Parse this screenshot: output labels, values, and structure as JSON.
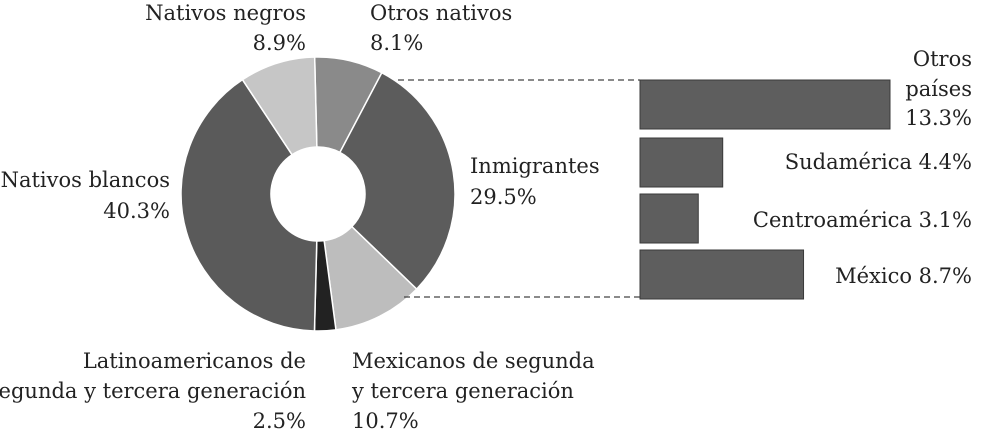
{
  "chart_data": [
    {
      "type": "pie",
      "slices": [
        {
          "label": "Otros nativos",
          "value": 8.1,
          "value_label": "8.1%",
          "color": "#8a8a8a"
        },
        {
          "label": "Inmigrantes",
          "value": 29.5,
          "value_label": "29.5%",
          "color": "#5c5c5c"
        },
        {
          "label": "Mexicanos de segunda y tercera generación",
          "value": 10.7,
          "value_label": "10.7%",
          "color": "#bdbdbd"
        },
        {
          "label": "Latinoamericanos de segunda y tercera generación",
          "value": 2.5,
          "value_label": "2.5%",
          "color": "#222222"
        },
        {
          "label": "Nativos blancos",
          "value": 40.3,
          "value_label": "40.3%",
          "color": "#5a5a5a"
        },
        {
          "label": "Nativos negros",
          "value": 8.9,
          "value_label": "8.9%",
          "color": "#c6c6c6"
        }
      ]
    },
    {
      "type": "bar",
      "orientation": "horizontal",
      "categories": [
        "Otros países",
        "Sudamérica",
        "Centroamérica",
        "México"
      ],
      "values": [
        13.3,
        4.4,
        3.1,
        8.7
      ],
      "value_labels": [
        "13.3%",
        "4.4%",
        "3.1%",
        "8.7%"
      ],
      "color": "#5e5e5e"
    }
  ],
  "labels": {
    "otros_nativos": {
      "name": "Otros nativos",
      "pct": "8.1%"
    },
    "nativos_negros": {
      "name": "Nativos negros",
      "pct": "8.9%"
    },
    "nativos_blancos": {
      "name": "Nativos blancos",
      "pct": "40.3%"
    },
    "inmigrantes": {
      "name": "Inmigrantes",
      "pct": "29.5%"
    },
    "mexicanos": {
      "line1": "Mexicanos de segunda",
      "line2": "y tercera generación",
      "pct": "10.7%"
    },
    "latinoamericanos": {
      "line1": "Latinoamericanos de",
      "line2": "segunda y tercera generación",
      "pct": "2.5%"
    },
    "bar_otros": {
      "line1": "Otros",
      "line2": "países",
      "pct": "13.3%"
    },
    "bar_sudamerica": "Sudamérica 4.4%",
    "bar_centroamerica": "Centroamérica 3.1%",
    "bar_mexico": "México 8.7%"
  }
}
